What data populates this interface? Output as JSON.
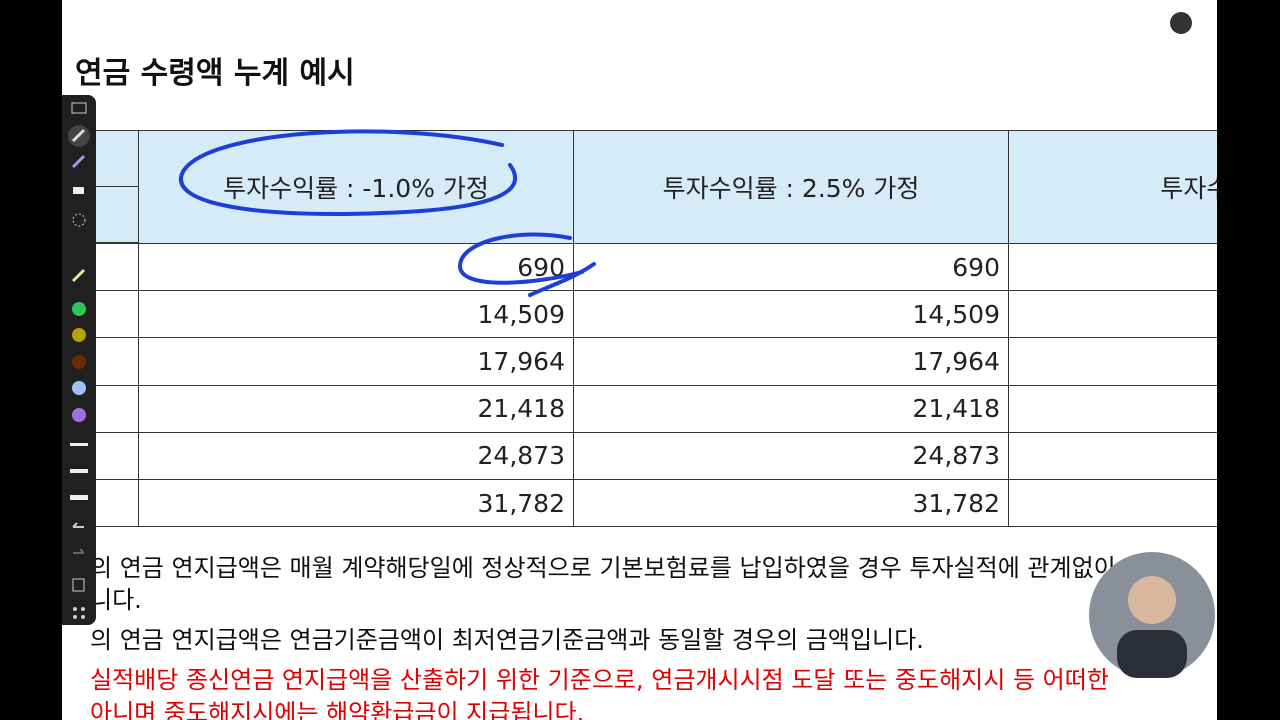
{
  "header": {
    "title": "연금 수령액 누계 예시"
  },
  "table": {
    "columns": [
      "투자수익률 : -1.0% 가정",
      "투자수익률 : 2.5% 가정",
      "투자수익률 :"
    ],
    "rows": [
      [
        "690",
        "690"
      ],
      [
        "14,509",
        "14,509"
      ],
      [
        "17,964",
        "17,964"
      ],
      [
        "21,418",
        "21,418"
      ],
      [
        "24,873",
        "24,873"
      ],
      [
        "31,782",
        "31,782"
      ]
    ]
  },
  "notes": [
    {
      "text": "의 연금 연지급액은 매월 계약해당일에 정상적으로 기본보험료를 납입하였을 경우 투자실적에 관계없이",
      "color": "#111111"
    },
    {
      "text": "니다.",
      "color": "#111111"
    },
    {
      "text": "의 연금 연지급액은 연금기준금액이 최저연금기준금액과 동일할 경우의 금액입니다.",
      "color": "#111111"
    },
    {
      "text": "실적배당 종신연금 연지급액을 산출하기 위한 기준으로, 연금개시시점 도달 또는 중도해지시 등 어떠한",
      "color": "#e00000"
    },
    {
      "text": "아니며 중도해지시에는 해약환급금이 지급됩니다.",
      "color": "#e00000"
    }
  ]
}
